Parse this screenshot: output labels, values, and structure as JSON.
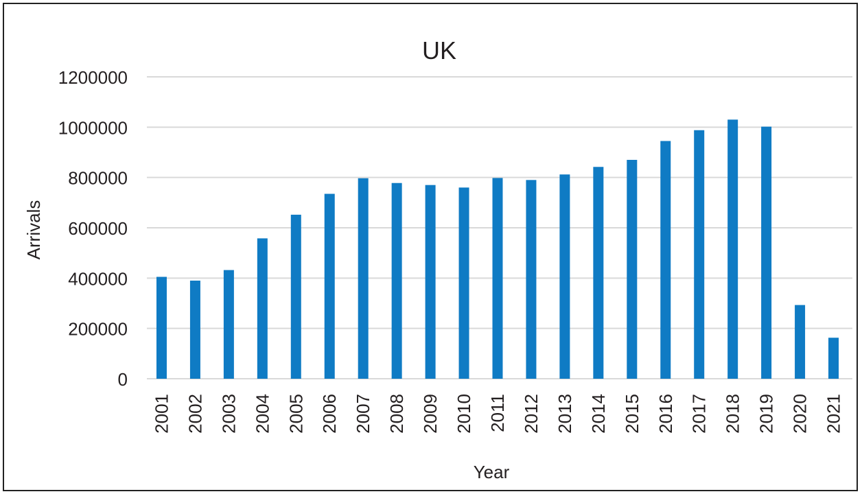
{
  "chart_data": {
    "type": "bar",
    "title": "UK",
    "xlabel": "Year",
    "ylabel": "Arrivals",
    "ylim": [
      0,
      1200000
    ],
    "yticks": [
      0,
      200000,
      400000,
      600000,
      800000,
      1000000,
      1200000
    ],
    "grid": true,
    "categories": [
      "2001",
      "2002",
      "2003",
      "2004",
      "2005",
      "2006",
      "2007",
      "2008",
      "2009",
      "2010",
      "2011",
      "2012",
      "2013",
      "2014",
      "2015",
      "2016",
      "2017",
      "2018",
      "2019",
      "2020",
      "2021"
    ],
    "values": [
      405000,
      390000,
      432000,
      558000,
      652000,
      735000,
      797000,
      778000,
      770000,
      760000,
      798000,
      790000,
      812000,
      842000,
      870000,
      945000,
      988000,
      1030000,
      1002000,
      293000,
      163000
    ],
    "bar_color": "#0f7bc4"
  }
}
